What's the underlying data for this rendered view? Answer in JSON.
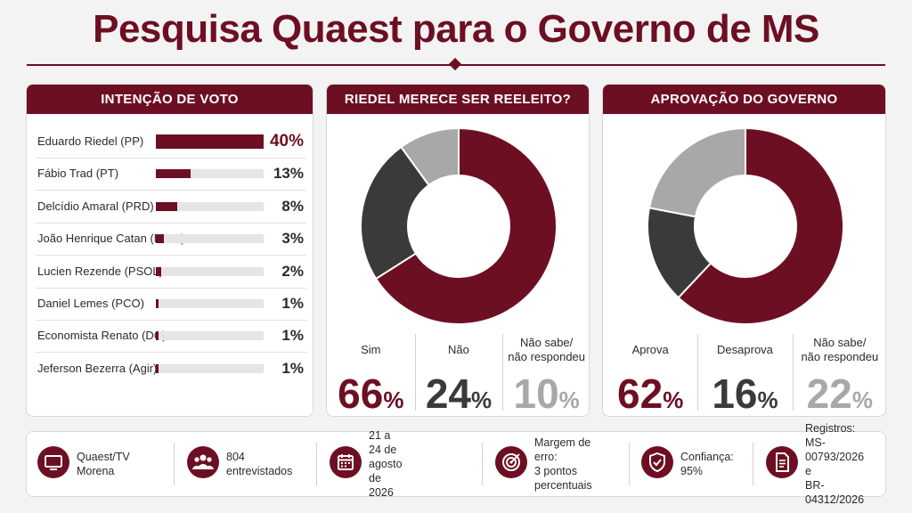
{
  "title": "Pesquisa Quaest para o Governo de MS",
  "colors": {
    "accent": "#6d0f22",
    "dark": "#3a3a3a",
    "gray": "#a8a8a8"
  },
  "vote_intention": {
    "heading": "INTENÇÃO DE VOTO",
    "rows": [
      {
        "name": "Eduardo Riedel (PP)",
        "pct_label": "40%"
      },
      {
        "name": "Fábio Trad (PT)",
        "pct_label": "13%"
      },
      {
        "name": "Delcídio Amaral (PRD)",
        "pct_label": "8%"
      },
      {
        "name": "João Henrique Catan (Novo)",
        "pct_label": "3%"
      },
      {
        "name": "Lucien Rezende (PSOL)",
        "pct_label": "2%"
      },
      {
        "name": "Daniel Lemes (PCO)",
        "pct_label": "1%"
      },
      {
        "name": "Economista Renato (DC)",
        "pct_label": "1%"
      },
      {
        "name": "Jeferson Bezerra (Agir)",
        "pct_label": "1%"
      }
    ]
  },
  "reelection": {
    "heading": "RIEDEL MERECE SER REELEITO?",
    "items": [
      {
        "label": "Sim",
        "value": "66",
        "unit": "%"
      },
      {
        "label": "Não",
        "value": "24",
        "unit": "%"
      },
      {
        "label": "Não sabe/\nnão respondeu",
        "value": "10",
        "unit": "%"
      }
    ]
  },
  "approval": {
    "heading": "APROVAÇÃO DO GOVERNO",
    "items": [
      {
        "label": "Aprova",
        "value": "62",
        "unit": "%"
      },
      {
        "label": "Desaprova",
        "value": "16",
        "unit": "%"
      },
      {
        "label": "Não sabe/\nnão respondeu",
        "value": "22",
        "unit": "%"
      }
    ]
  },
  "footer": {
    "items": [
      {
        "icon": "tv-icon",
        "text": "Quaest/TV Morena"
      },
      {
        "icon": "people-icon",
        "text": "804 entrevistados"
      },
      {
        "icon": "calendar-icon",
        "text": "21 a 24 de agosto de 2026"
      },
      {
        "icon": "target-icon",
        "text": "Margem de erro:\n3 pontos percentuais"
      },
      {
        "icon": "shield-check-icon",
        "text": "Confiança: 95%"
      },
      {
        "icon": "document-icon",
        "text": "Registros:\nMS-00793/2026 e\nBR-04312/2026"
      }
    ]
  },
  "chart_data": [
    {
      "type": "bar",
      "title": "INTENÇÃO DE VOTO",
      "categories": [
        "Eduardo Riedel (PP)",
        "Fábio Trad (PT)",
        "Delcídio Amaral (PRD)",
        "João Henrique Catan (Novo)",
        "Lucien Rezende (PSOL)",
        "Daniel Lemes (PCO)",
        "Economista Renato (DC)",
        "Jeferson Bezerra (Agir)"
      ],
      "values": [
        40,
        13,
        8,
        3,
        2,
        1,
        1,
        1
      ],
      "xlim": [
        0,
        40
      ]
    },
    {
      "type": "pie",
      "title": "RIEDEL MERECE SER REELEITO?",
      "categories": [
        "Sim",
        "Não",
        "Não sabe/não respondeu"
      ],
      "values": [
        66,
        24,
        10
      ],
      "colors": [
        "#6d0f22",
        "#3a3a3a",
        "#a8a8a8"
      ]
    },
    {
      "type": "pie",
      "title": "APROVAÇÃO DO GOVERNO",
      "categories": [
        "Aprova",
        "Desaprova",
        "Não sabe/não respondeu"
      ],
      "values": [
        62,
        16,
        22
      ],
      "colors": [
        "#6d0f22",
        "#3a3a3a",
        "#a8a8a8"
      ]
    }
  ]
}
